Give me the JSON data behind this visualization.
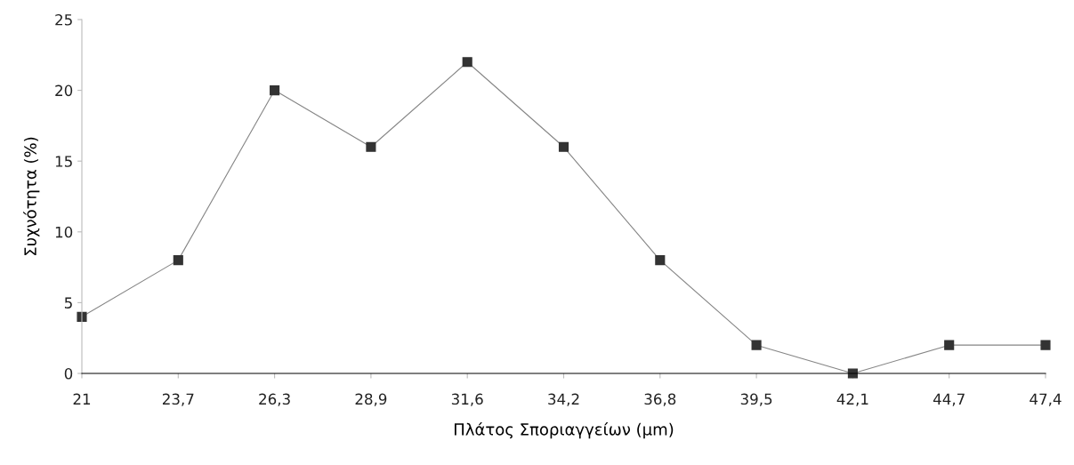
{
  "chart_data": {
    "type": "line",
    "xlabel": "Πλάτος Σποριαγγείων (μm)",
    "ylabel": "Συχνότητα (%)",
    "categories": [
      "21",
      "23,7",
      "26,3",
      "28,9",
      "31,6",
      "34,2",
      "36,8",
      "39,5",
      "42,1",
      "44,7",
      "47,4"
    ],
    "series": [
      {
        "color": "#333333",
        "values": [
          4,
          8,
          20,
          16,
          22,
          16,
          8,
          2,
          0,
          2,
          2
        ]
      }
    ],
    "ylim": [
      0,
      25
    ],
    "yticks": [
      0,
      5,
      10,
      15,
      20,
      25
    ],
    "grid": false,
    "marker": "square",
    "line_style": "solid"
  }
}
